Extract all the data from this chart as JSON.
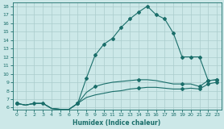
{
  "xlabel": "Humidex (Indice chaleur)",
  "bg_color": "#cce8e8",
  "grid_color": "#aacccc",
  "line_color": "#1a6e6a",
  "xlim_min": -0.5,
  "xlim_max": 23.5,
  "ylim_min": 5.8,
  "ylim_max": 18.4,
  "yticks": [
    6,
    7,
    8,
    9,
    10,
    11,
    12,
    13,
    14,
    15,
    16,
    17,
    18
  ],
  "xticks": [
    0,
    1,
    2,
    3,
    4,
    5,
    6,
    7,
    8,
    9,
    10,
    11,
    12,
    13,
    14,
    15,
    16,
    17,
    18,
    19,
    20,
    21,
    22,
    23
  ],
  "curve_main_x": [
    0,
    1,
    2,
    3,
    4,
    5,
    6,
    7,
    8,
    9,
    10,
    11,
    12,
    13,
    14,
    15,
    16,
    17,
    18,
    19,
    20,
    21,
    22,
    23
  ],
  "curve_main_y": [
    6.5,
    6.3,
    6.5,
    6.5,
    5.9,
    5.8,
    5.8,
    6.5,
    9.5,
    12.2,
    13.5,
    14.2,
    15.5,
    16.5,
    17.3,
    18.0,
    17.0,
    16.5,
    14.8,
    12.0,
    12.0,
    12.0,
    9.2,
    9.3
  ],
  "curve_mid_x": [
    0,
    1,
    2,
    3,
    4,
    5,
    6,
    7,
    8,
    9,
    10,
    11,
    12,
    13,
    14,
    15,
    16,
    17,
    18,
    19,
    20,
    21,
    22,
    23
  ],
  "curve_mid_y": [
    6.5,
    6.3,
    6.5,
    6.5,
    5.9,
    5.8,
    5.8,
    6.5,
    7.8,
    8.5,
    8.8,
    9.0,
    9.1,
    9.2,
    9.3,
    9.3,
    9.2,
    9.0,
    8.8,
    8.8,
    8.8,
    8.5,
    9.2,
    9.3
  ],
  "curve_low_x": [
    0,
    1,
    2,
    3,
    4,
    5,
    6,
    7,
    8,
    9,
    10,
    11,
    12,
    13,
    14,
    15,
    16,
    17,
    18,
    19,
    20,
    21,
    22,
    23
  ],
  "curve_low_y": [
    6.5,
    6.3,
    6.5,
    6.5,
    5.9,
    5.8,
    5.8,
    6.5,
    7.2,
    7.5,
    7.7,
    7.9,
    8.0,
    8.2,
    8.3,
    8.4,
    8.4,
    8.3,
    8.2,
    8.2,
    8.3,
    8.2,
    8.8,
    9.0
  ],
  "marker_main_x": [
    0,
    2,
    3,
    7,
    8,
    9,
    10,
    11,
    12,
    13,
    14,
    15,
    16,
    17,
    18,
    19,
    20,
    21,
    22,
    23
  ],
  "marker_main_y": [
    6.5,
    6.5,
    6.5,
    6.5,
    9.5,
    12.2,
    13.5,
    14.2,
    15.5,
    16.5,
    17.3,
    18.0,
    17.0,
    16.5,
    14.8,
    12.0,
    12.0,
    12.0,
    9.2,
    9.3
  ],
  "marker_mid_x": [
    0,
    7,
    9,
    14,
    19,
    21,
    22,
    23
  ],
  "marker_mid_y": [
    6.5,
    6.5,
    8.5,
    9.3,
    8.8,
    8.5,
    9.2,
    9.3
  ],
  "marker_low_x": [
    0,
    7,
    14,
    19,
    21,
    22,
    23
  ],
  "marker_low_y": [
    6.5,
    6.5,
    8.3,
    8.2,
    8.2,
    8.8,
    9.0
  ]
}
